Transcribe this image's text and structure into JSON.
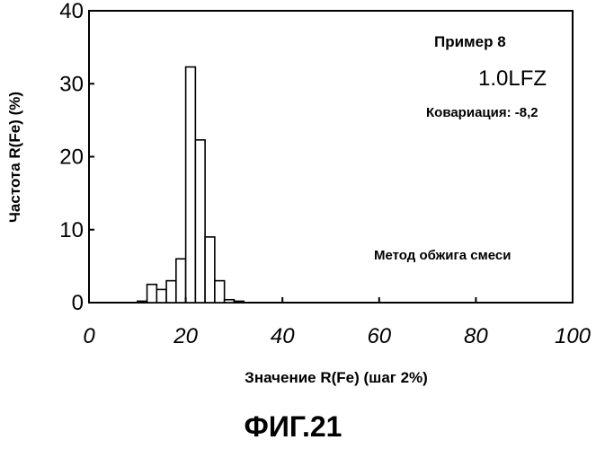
{
  "chart_data": {
    "type": "bar",
    "bin_width": 2,
    "x": [
      10,
      12,
      14,
      16,
      18,
      20,
      22,
      24,
      26,
      28,
      30
    ],
    "values": [
      0.2,
      2.5,
      1.8,
      3.0,
      6.0,
      32.3,
      22.3,
      9.0,
      3.0,
      0.4,
      0.2
    ],
    "xlim": [
      0,
      100
    ],
    "ylim": [
      0,
      40
    ],
    "xticks": [
      "0",
      "20",
      "40",
      "60",
      "80",
      "100"
    ],
    "yticks": [
      "0",
      "10",
      "20",
      "30",
      "40"
    ],
    "xlabel": "Значение R(Fe) (шаг 2%)",
    "ylabel": "Частота R(Fe) (%)",
    "grid": false,
    "annotations": {
      "example": "Пример 8",
      "sample": "1.0LFZ",
      "covariance": "Ковариация: -8,2",
      "method": "Метод обжига смеси"
    }
  },
  "figure_caption": "ФИГ.21"
}
